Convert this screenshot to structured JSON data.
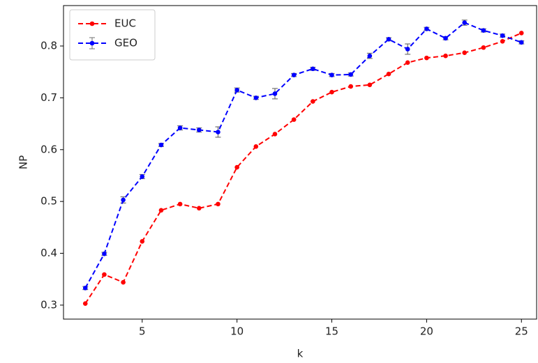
{
  "chart_data": {
    "type": "line",
    "x_label": "k",
    "y_label": "NP",
    "x": [
      2,
      3,
      4,
      5,
      6,
      7,
      8,
      9,
      10,
      11,
      12,
      13,
      14,
      15,
      16,
      17,
      18,
      19,
      20,
      21,
      22,
      23,
      24,
      25
    ],
    "series": [
      {
        "name": "EUC",
        "color": "#ff0000",
        "values": [
          0.303,
          0.359,
          0.344,
          0.423,
          0.483,
          0.495,
          0.487,
          0.495,
          0.566,
          0.606,
          0.63,
          0.658,
          0.693,
          0.711,
          0.722,
          0.725,
          0.746,
          0.768,
          0.777,
          0.781,
          0.787,
          0.797,
          0.809,
          0.825
        ]
      },
      {
        "name": "GEO",
        "color": "#0000ff",
        "error_color": "#707070",
        "values": [
          0.333,
          0.399,
          0.503,
          0.548,
          0.609,
          0.642,
          0.638,
          0.634,
          0.715,
          0.7,
          0.708,
          0.744,
          0.756,
          0.744,
          0.745,
          0.781,
          0.813,
          0.794,
          0.833,
          0.815,
          0.845,
          0.83,
          0.82,
          0.807
        ],
        "errors": [
          0.003,
          0.003,
          0.006,
          0.004,
          0.003,
          0.004,
          0.004,
          0.01,
          0.004,
          0.003,
          0.01,
          0.003,
          0.003,
          0.003,
          0.003,
          0.005,
          0.003,
          0.01,
          0.003,
          0.003,
          0.005,
          0.003,
          0.003,
          0.003
        ]
      }
    ],
    "xlim": [
      0.85,
      25.8
    ],
    "ylim": [
      0.273,
      0.878
    ],
    "xticks": [
      5,
      10,
      15,
      20,
      25
    ],
    "yticks": [
      0.3,
      0.4,
      0.5,
      0.6,
      0.7,
      0.8
    ],
    "legend": "upper left"
  }
}
